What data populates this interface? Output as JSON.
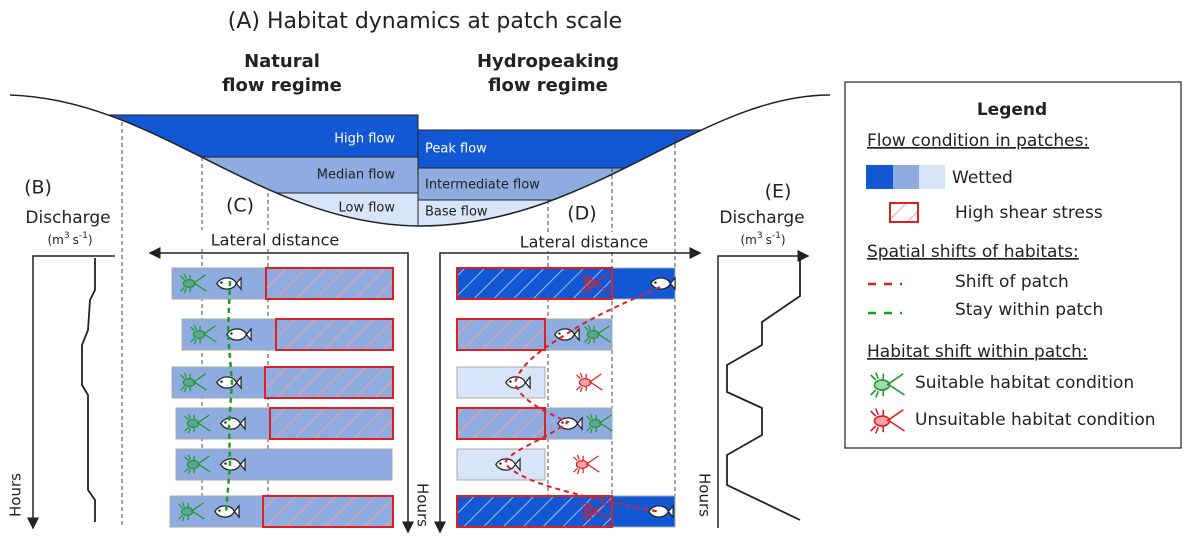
{
  "title": "(A) Habitat dynamics at patch scale",
  "regimes": {
    "natural": [
      "Natural",
      "flow regime"
    ],
    "hydropeaking": [
      "Hydropeaking",
      "flow regime"
    ]
  },
  "natural_levels": [
    "High flow",
    "Median flow",
    "Low flow"
  ],
  "hydropeaking_levels": [
    "Peak flow",
    "Intermediate flow",
    "Base flow"
  ],
  "panels": {
    "B": {
      "label": "(B)",
      "axis": "Discharge",
      "unit": [
        "(m",
        "3",
        "s",
        "-1",
        ")"
      ],
      "time_axis": "Hours"
    },
    "C": {
      "label": "(C)",
      "axis": "Lateral distance",
      "time_axis": "Hours"
    },
    "D": {
      "label": "(D)",
      "axis": "Lateral distance"
    },
    "E": {
      "label": "(E)",
      "axis": "Discharge",
      "unit": [
        "(m",
        "3",
        "s",
        "-1",
        ")"
      ],
      "time_axis": "Hours"
    }
  },
  "legend": {
    "title": "Legend",
    "flow_heading": "Flow condition in patches:",
    "wetted": "Wetted",
    "shear": "High shear stress",
    "shift_heading": "Spatial shifts of habitats:",
    "shift": "Shift of patch",
    "stay": "Stay within patch",
    "habitat_heading": "Habitat shift within patch:",
    "suitable": "Suitable habitat condition",
    "unsuitable": "Unsuitable habitat condition"
  }
}
